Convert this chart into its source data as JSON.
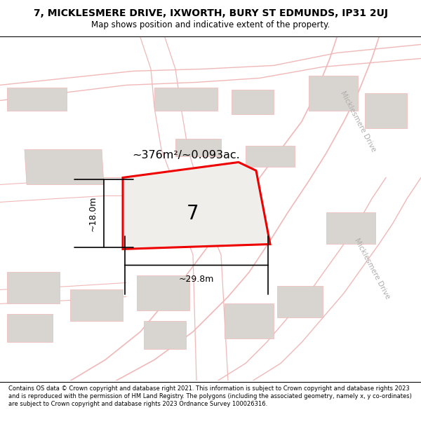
{
  "title_line1": "7, MICKLESMERE DRIVE, IXWORTH, BURY ST EDMUNDS, IP31 2UJ",
  "title_line2": "Map shows position and indicative extent of the property.",
  "footer_text": "Contains OS data © Crown copyright and database right 2021. This information is subject to Crown copyright and database rights 2023 and is reproduced with the permission of HM Land Registry. The polygons (including the associated geometry, namely x, y co-ordinates) are subject to Crown copyright and database rights 2023 Ordnance Survey 100026316.",
  "area_label": "~376m²/~0.093ac.",
  "width_label": "~29.8m",
  "height_label": "~18.0m",
  "number_label": "7",
  "map_bg": "#f5f3f0",
  "road_color": "#f0b8b8",
  "building_color": "#d8d4d0",
  "red_outline": "#ee0000",
  "street_label": "Micklesmere Drive"
}
